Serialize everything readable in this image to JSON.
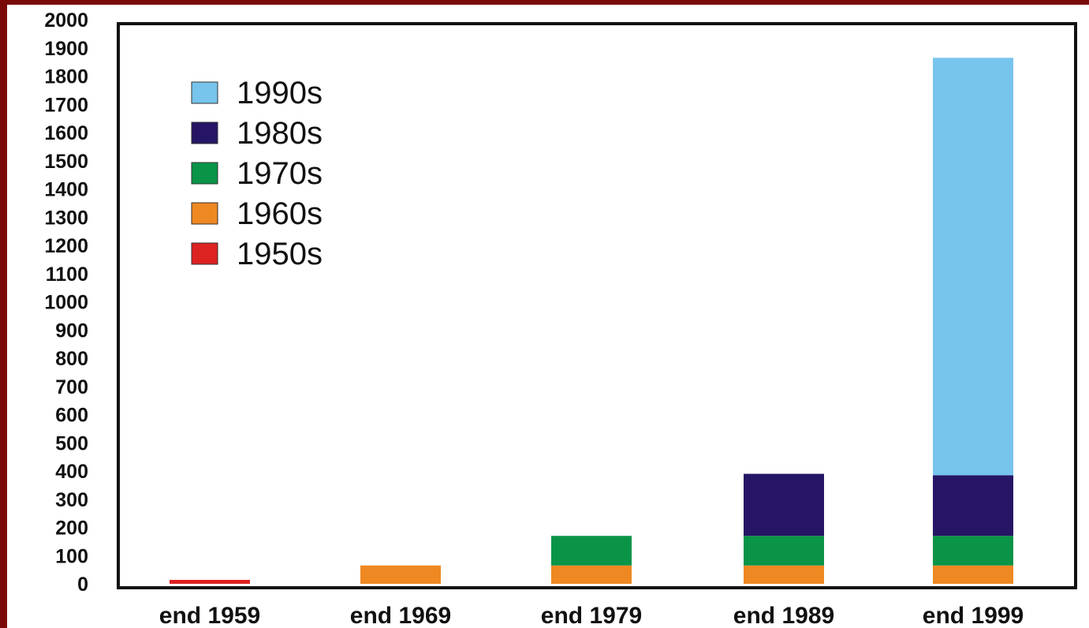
{
  "chart_data": {
    "type": "bar",
    "stacked": true,
    "categories": [
      "end 1959",
      "end 1969",
      "end 1979",
      "end 1989",
      "end 1999"
    ],
    "series": [
      {
        "name": "1950s",
        "color": "#dd2222",
        "values": [
          14,
          0,
          0,
          0,
          0
        ]
      },
      {
        "name": "1960s",
        "color": "#ee8822",
        "values": [
          0,
          65,
          65,
          65,
          65
        ]
      },
      {
        "name": "1970s",
        "color": "#0a9448",
        "values": [
          0,
          0,
          105,
          105,
          105
        ]
      },
      {
        "name": "1980s",
        "color": "#261565",
        "values": [
          0,
          0,
          0,
          220,
          215
        ]
      },
      {
        "name": "1990s",
        "color": "#77c4ec",
        "values": [
          0,
          0,
          0,
          0,
          1480
        ]
      }
    ],
    "legend_order": [
      "1990s",
      "1980s",
      "1970s",
      "1960s",
      "1950s"
    ],
    "legend_position": "top-left",
    "y_ticks": [
      "0",
      "100",
      "200",
      "300",
      "400",
      "500",
      "600",
      "700",
      "800",
      "900",
      "1000",
      "1100",
      "1200",
      "1300",
      "1400",
      "1500",
      "1600",
      "1700",
      "1800",
      "1900",
      "2000"
    ],
    "ylim": [
      0,
      2000
    ],
    "title": "",
    "xlabel": "",
    "ylabel": "",
    "grid": false
  }
}
